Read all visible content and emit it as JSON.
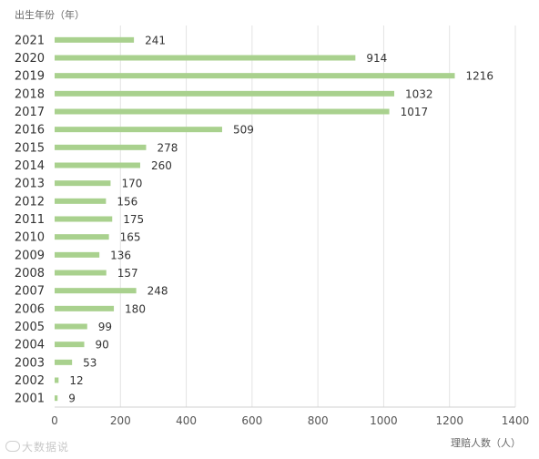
{
  "chart_data": {
    "type": "bar",
    "orientation": "horizontal",
    "ylabel": "出生年份（年）",
    "xlabel": "理赔人数（人）",
    "categories": [
      "2021",
      "2020",
      "2019",
      "2018",
      "2017",
      "2016",
      "2015",
      "2014",
      "2013",
      "2012",
      "2011",
      "2010",
      "2009",
      "2008",
      "2007",
      "2006",
      "2005",
      "2004",
      "2003",
      "2002",
      "2001"
    ],
    "values": [
      241,
      914,
      1216,
      1032,
      1017,
      509,
      278,
      260,
      170,
      156,
      175,
      165,
      136,
      157,
      248,
      180,
      99,
      90,
      53,
      12,
      9
    ],
    "xlim": [
      0,
      1400
    ],
    "xticks": [
      0,
      200,
      400,
      600,
      800,
      1000,
      1200,
      1400
    ],
    "grid": "vertical",
    "bar_color": "#a9d18e"
  },
  "watermark": "大数据说"
}
